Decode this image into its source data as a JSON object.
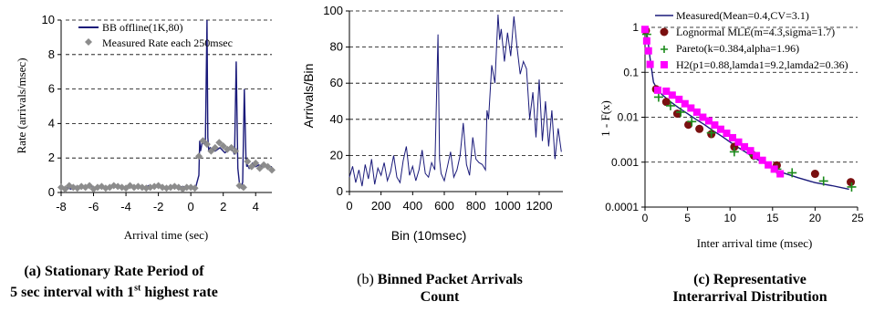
{
  "chart_data": [
    {
      "type": "line",
      "xlabel": "Arrival time (sec)",
      "ylabel": "Rate (arrivals/msec)",
      "xlim": [
        -8,
        5
      ],
      "ylim": [
        0,
        10
      ],
      "x_ticks": [
        "-8",
        "-6",
        "-4",
        "-2",
        "0",
        "2",
        "4"
      ],
      "y_ticks": [
        "0",
        "2",
        "4",
        "6",
        "8",
        "10"
      ],
      "grid": "horizontal dashed",
      "legend_position": "top-left",
      "series": [
        {
          "name": "BB offline(1K,80)",
          "style": "line",
          "color": "#1a1a7a",
          "x": [
            -8,
            -7.7,
            -7.4,
            -7.1,
            -6.8,
            -6.5,
            -6.2,
            -5.9,
            -5.6,
            -5.3,
            -5.0,
            -4.7,
            -4.4,
            -4.1,
            -3.8,
            -3.5,
            -3.2,
            -2.9,
            -2.6,
            -2.3,
            -2.0,
            -1.7,
            -1.4,
            -1.1,
            -0.8,
            -0.5,
            -0.2,
            0.1,
            0.3,
            0.5,
            0.55,
            0.6,
            0.7,
            0.9,
            1.0,
            1.05,
            1.1,
            1.2,
            1.5,
            1.8,
            2.1,
            2.4,
            2.6,
            2.7,
            2.8,
            2.9,
            3.0,
            3.1,
            3.2,
            3.3,
            3.4,
            3.45,
            3.5,
            3.6,
            3.8,
            4.0,
            4.2,
            4.4,
            4.6,
            4.8,
            5.0
          ],
          "y": [
            0.25,
            0.3,
            0.2,
            0.35,
            0.25,
            0.3,
            0.4,
            0.2,
            0.3,
            0.25,
            0.35,
            0.3,
            0.4,
            0.25,
            0.3,
            0.35,
            0.3,
            0.25,
            0.4,
            0.3,
            0.35,
            0.25,
            0.3,
            0.4,
            0.3,
            0.35,
            0.3,
            0.25,
            0.3,
            1.0,
            3.0,
            2.4,
            2.9,
            2.8,
            10.0,
            3.2,
            2.5,
            2.6,
            2.4,
            2.6,
            2.3,
            2.5,
            2.4,
            2.2,
            7.6,
            1.4,
            0.5,
            0.3,
            0.6,
            6.0,
            2.0,
            1.5,
            1.6,
            1.4,
            1.7,
            1.5,
            1.6,
            1.5,
            1.6,
            1.5,
            1.5
          ]
        },
        {
          "name": "Measured Rate each 250msec",
          "style": "diamond",
          "color": "#8c8c8c",
          "x": [
            -8,
            -7.75,
            -7.5,
            -7.25,
            -7,
            -6.75,
            -6.5,
            -6.25,
            -6,
            -5.75,
            -5.5,
            -5.25,
            -5,
            -4.75,
            -4.5,
            -4.25,
            -4,
            -3.75,
            -3.5,
            -3.25,
            -3,
            -2.75,
            -2.5,
            -2.25,
            -2,
            -1.75,
            -1.5,
            -1.25,
            -1,
            -0.75,
            -0.5,
            -0.25,
            0,
            0.25,
            0.5,
            0.75,
            1,
            1.25,
            1.5,
            1.75,
            2,
            2.25,
            2.5,
            2.75,
            3,
            3.25,
            3.5,
            3.75,
            4,
            4.25,
            4.5,
            4.75,
            5
          ],
          "y": [
            0.3,
            0.2,
            0.4,
            0.3,
            0.25,
            0.35,
            0.3,
            0.4,
            0.2,
            0.3,
            0.35,
            0.25,
            0.3,
            0.4,
            0.35,
            0.3,
            0.25,
            0.4,
            0.3,
            0.35,
            0.3,
            0.25,
            0.3,
            0.35,
            0.4,
            0.3,
            0.25,
            0.3,
            0.35,
            0.3,
            0.2,
            0.3,
            0.3,
            0.25,
            2.1,
            3.0,
            2.8,
            2.4,
            2.6,
            2.9,
            2.7,
            2.5,
            2.6,
            2.4,
            0.4,
            0.3,
            1.8,
            1.5,
            1.7,
            1.4,
            1.6,
            1.5,
            1.3
          ]
        }
      ]
    },
    {
      "type": "line",
      "xlabel": "Bin (10msec)",
      "ylabel": "Arrivals/Bin",
      "xlim": [
        0,
        1350
      ],
      "ylim": [
        0,
        100
      ],
      "x_ticks": [
        "0",
        "200",
        "400",
        "600",
        "800",
        "1000",
        "1200"
      ],
      "y_ticks": [
        "0",
        "20",
        "40",
        "60",
        "80",
        "100"
      ],
      "grid": "horizontal dashed",
      "series": [
        {
          "style": "line",
          "color": "#1a1a7a",
          "x": [
            0,
            20,
            40,
            60,
            80,
            100,
            120,
            140,
            160,
            180,
            200,
            220,
            240,
            260,
            280,
            300,
            320,
            340,
            360,
            380,
            400,
            420,
            440,
            460,
            480,
            500,
            520,
            540,
            560,
            570,
            580,
            600,
            620,
            640,
            660,
            680,
            700,
            720,
            740,
            760,
            780,
            800,
            820,
            840,
            860,
            870,
            880,
            900,
            920,
            940,
            950,
            960,
            980,
            1000,
            1020,
            1040,
            1060,
            1080,
            1100,
            1120,
            1140,
            1160,
            1180,
            1200,
            1220,
            1240,
            1260,
            1280,
            1300,
            1320,
            1340
          ],
          "y": [
            8,
            14,
            5,
            12,
            3,
            15,
            7,
            18,
            4,
            13,
            9,
            16,
            6,
            11,
            20,
            8,
            5,
            17,
            25,
            9,
            14,
            6,
            12,
            23,
            10,
            8,
            16,
            12,
            87,
            18,
            10,
            6,
            14,
            22,
            8,
            12,
            20,
            38,
            15,
            9,
            30,
            18,
            16,
            15,
            12,
            45,
            40,
            70,
            60,
            98,
            84,
            90,
            72,
            88,
            75,
            97,
            80,
            65,
            72,
            68,
            40,
            55,
            30,
            62,
            28,
            50,
            25,
            45,
            18,
            35,
            22
          ]
        }
      ]
    },
    {
      "type": "scatter",
      "xlabel": "Inter arrival time (msec)",
      "ylabel": "1 - F(x)",
      "xlim": [
        0,
        25
      ],
      "ylim": [
        0.0001,
        1
      ],
      "yscale": "log",
      "x_ticks": [
        "0",
        "5",
        "10",
        "15",
        "20",
        "25"
      ],
      "y_ticks": [
        "1",
        "0.1",
        "0.01",
        "0.001",
        "0.0001"
      ],
      "grid": "horizontal dashed",
      "legend_position": "top-right",
      "series": [
        {
          "name": "Measured(Mean=0.4,CV=3.1)",
          "style": "line",
          "color": "#1a1a7a",
          "x": [
            0,
            0.3,
            0.6,
            1,
            1.5,
            2,
            3,
            4,
            5,
            6,
            7,
            8,
            9,
            10,
            11,
            12,
            13,
            14,
            15,
            16,
            18,
            20,
            22,
            24
          ],
          "y": [
            1,
            0.6,
            0.2,
            0.06,
            0.04,
            0.032,
            0.022,
            0.016,
            0.012,
            0.009,
            0.0068,
            0.005,
            0.0038,
            0.0028,
            0.0021,
            0.0016,
            0.0012,
            0.00095,
            0.00075,
            0.0006,
            0.00045,
            0.00035,
            0.0003,
            0.00025
          ]
        },
        {
          "name": "Lognormal MLE(m=4.3,sigma=1.7)",
          "style": "circle",
          "color": "#7a1010",
          "x": [
            0.1,
            1.3,
            2.5,
            3.8,
            5.1,
            6.4,
            7.8,
            10.5,
            12.8,
            15.5,
            20,
            24.2
          ],
          "y": [
            0.85,
            0.042,
            0.022,
            0.012,
            0.0068,
            0.0055,
            0.0042,
            0.0022,
            0.0014,
            0.00085,
            0.00055,
            0.00036
          ]
        },
        {
          "name": "Pareto(k=0.384,alpha=1.96)",
          "style": "plus",
          "color": "#1a8a1a",
          "x": [
            0.2,
            1.6,
            3,
            4.2,
            5.5,
            7.8,
            10.5,
            12.8,
            15.5,
            17.3,
            21,
            24.3
          ],
          "y": [
            0.7,
            0.028,
            0.018,
            0.013,
            0.008,
            0.0045,
            0.0017,
            0.0014,
            0.0007,
            0.00058,
            0.00038,
            0.00028
          ]
        },
        {
          "name": "H2(p1=0.88,lamda1=9.2,lamda2=0.36)",
          "style": "square",
          "color": "#ff00ff",
          "x": [
            0,
            0.2,
            0.4,
            0.6,
            1.5,
            2.5,
            3.2,
            4,
            4.7,
            5.4,
            6.1,
            6.8,
            7.5,
            8.2,
            8.9,
            9.6,
            10.3,
            11,
            11.7,
            12.4,
            13.1,
            13.8,
            14.5,
            15.2,
            15.9
          ],
          "y": [
            0.9,
            0.5,
            0.3,
            0.15,
            0.04,
            0.038,
            0.031,
            0.025,
            0.02,
            0.016,
            0.013,
            0.01,
            0.0083,
            0.0067,
            0.0054,
            0.0044,
            0.0035,
            0.0028,
            0.0022,
            0.0018,
            0.0014,
            0.0011,
            0.00087,
            0.0007,
            0.00055
          ]
        }
      ]
    }
  ],
  "captions": {
    "a_tag": "(a)",
    "a_line1": "Stationary Rate Period of",
    "a_line2_pre": "5 sec interval with 1",
    "a_sup": "st",
    "a_line2_post": "highest rate",
    "b_tag": "(b)",
    "b_line1": "Binned Packet Arrivals",
    "b_line2": "Count",
    "c_tag": "(c)",
    "c_line1": "Representative",
    "c_line2": "Interarrival Distribution"
  }
}
